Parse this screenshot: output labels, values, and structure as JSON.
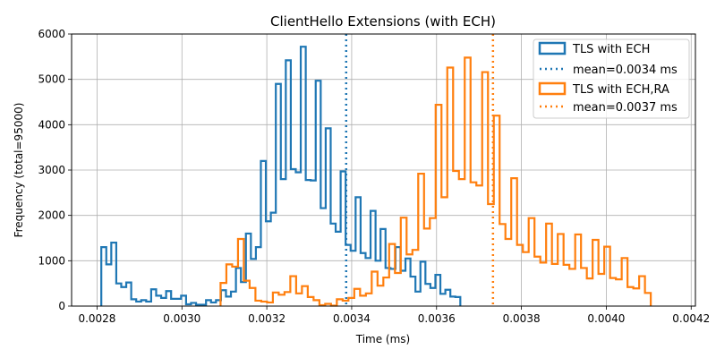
{
  "chart_data": {
    "type": "histogram",
    "title": "ClientHello Extensions (with ECH)",
    "xlabel": "Time (ms)",
    "ylabel": "Frequency (total=95000)",
    "xlim": [
      0.00274,
      0.00421
    ],
    "ylim": [
      0,
      6000
    ],
    "xticks": [
      0.0028,
      0.003,
      0.0032,
      0.0034,
      0.0036,
      0.0038,
      0.004,
      0.0042
    ],
    "xtick_labels": [
      "0.0028",
      "0.0030",
      "0.0032",
      "0.0034",
      "0.0036",
      "0.0038",
      "0.0040",
      "0.0042"
    ],
    "yticks": [
      0,
      1000,
      2000,
      3000,
      4000,
      5000,
      6000
    ],
    "ytick_labels": [
      "0",
      "1000",
      "2000",
      "3000",
      "4000",
      "5000",
      "6000"
    ],
    "grid": true,
    "legend_position": "top-right",
    "series": [
      {
        "name": "TLS with ECH",
        "color": "#1f77b4",
        "bin_start": 0.00281,
        "bin_width": 1.175e-05,
        "counts": [
          1300,
          920,
          1400,
          500,
          420,
          520,
          150,
          100,
          130,
          100,
          370,
          230,
          180,
          330,
          160,
          160,
          230,
          40,
          70,
          30,
          30,
          130,
          80,
          130,
          350,
          210,
          320,
          840,
          530,
          1600,
          1040,
          1300,
          3200,
          1870,
          2060,
          4900,
          2800,
          5420,
          3020,
          2950,
          5720,
          2780,
          2770,
          4970,
          2160,
          3920,
          1820,
          1640,
          2970,
          1350,
          1220,
          2400,
          1170,
          1060,
          2100,
          1000,
          1700,
          840,
          820,
          1300,
          780,
          1050,
          650,
          320,
          980,
          490,
          400,
          690,
          270,
          360,
          210,
          200
        ]
      },
      {
        "name": "TLS with ECH,RA",
        "color": "#ff7f0e",
        "bin_start": 0.003091,
        "bin_width": 1.37e-05,
        "counts": [
          510,
          920,
          870,
          1480,
          560,
          400,
          120,
          100,
          80,
          300,
          250,
          310,
          660,
          280,
          440,
          200,
          130,
          20,
          50,
          10,
          150,
          120,
          180,
          380,
          230,
          280,
          760,
          450,
          630,
          1370,
          730,
          1950,
          1140,
          1240,
          2920,
          1710,
          1940,
          4440,
          2400,
          5260,
          2980,
          2800,
          5480,
          2730,
          2660,
          5160,
          2250,
          4200,
          1810,
          1480,
          2820,
          1350,
          1190,
          1940,
          1090,
          960,
          1820,
          930,
          1590,
          910,
          820,
          1580,
          840,
          610,
          1460,
          710,
          1310,
          620,
          590,
          1060,
          420,
          390,
          660,
          290
        ]
      }
    ],
    "mean_lines": [
      {
        "name": "mean=0.0034 ms",
        "x": 0.003387,
        "color": "#1f77b4",
        "style": "dotted"
      },
      {
        "name": "mean=0.0037 ms",
        "x": 0.003733,
        "color": "#ff7f0e",
        "style": "dotted"
      }
    ]
  }
}
